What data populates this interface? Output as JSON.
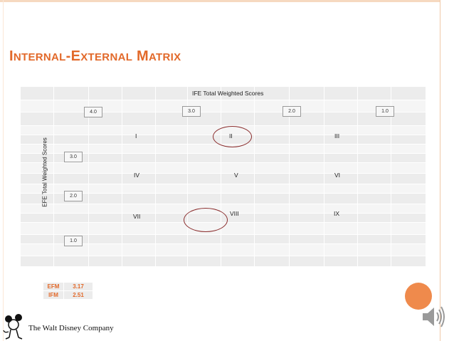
{
  "slide": {
    "title_parts": [
      {
        "text": "I",
        "style": "cap"
      },
      {
        "text": "NTERNAL",
        "style": "sc"
      },
      {
        "text": "-E",
        "style": "cap"
      },
      {
        "text": "XTERNAL",
        "style": "sc"
      },
      {
        "text": " M",
        "style": "cap"
      },
      {
        "text": "ATRIX",
        "style": "sc"
      }
    ]
  },
  "matrix": {
    "x_axis_label": "IFE Total Weighted Scores",
    "y_axis_label": "EFE Total Weighted Scores",
    "ife_ticks": [
      "4.0",
      "3.0",
      "2.0",
      "1.0"
    ],
    "efe_ticks": [
      "3.0",
      "2.0",
      "1.0"
    ],
    "cells": [
      "I",
      "II",
      "III",
      "IV",
      "V",
      "VI",
      "VII",
      "VIII",
      "IX"
    ],
    "highlighted_cells": [
      "II",
      "VIII"
    ],
    "highlight_color": "#8b2e2e"
  },
  "scores": [
    {
      "label": "EFM",
      "value": "3.17"
    },
    {
      "label": "IFM",
      "value": "2.51"
    }
  ],
  "logo": {
    "text": "The Walt Disney Company"
  },
  "colors": {
    "accent": "#e2692a",
    "grid": "#ececec",
    "grid_alt": "#f5f5f5"
  },
  "icons": [
    "mickey-logo-icon",
    "speaker-icon",
    "orange-circle-icon"
  ]
}
